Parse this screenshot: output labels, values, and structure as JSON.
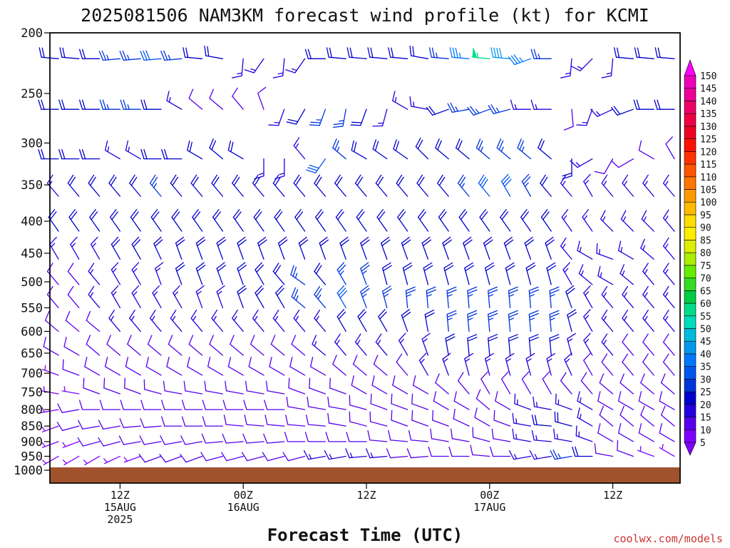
{
  "title": "2025081506 NAM3KM forecast wind profile (kt) for KCMI",
  "xlabel": "Forecast Time (UTC)",
  "credit": "coolwx.com/models",
  "colors": {
    "ground": "#a0522d",
    "credit": "#cc3333"
  },
  "colorbar": {
    "labels": [
      "5",
      "10",
      "15",
      "20",
      "25",
      "30",
      "35",
      "40",
      "45",
      "50",
      "55",
      "60",
      "65",
      "70",
      "75",
      "80",
      "85",
      "90",
      "95",
      "100",
      "105",
      "110",
      "115",
      "120",
      "125",
      "130",
      "135",
      "140",
      "145",
      "150"
    ],
    "colors": [
      "#7f00ff",
      "#5500ee",
      "#2200dd",
      "#0000cc",
      "#0033dd",
      "#0055ee",
      "#0077ff",
      "#0099ee",
      "#00bbdd",
      "#00ddbb",
      "#00dd88",
      "#00cc44",
      "#33dd22",
      "#66ee00",
      "#aaee00",
      "#ddee00",
      "#ffee00",
      "#ffdd00",
      "#ffbb00",
      "#ff9900",
      "#ff7700",
      "#ff5500",
      "#ff3300",
      "#ff1100",
      "#ee0022",
      "#ee0044",
      "#ee0066",
      "#ee0099",
      "#ee00bb",
      "#ff00ff"
    ]
  },
  "chart_data": {
    "type": "wind-barb-profile",
    "title": "2025081506 NAM3KM forecast wind profile (kt) for KCMI",
    "xlabel": "Forecast Time (UTC)",
    "ylabel": "",
    "y_scale": "log-pressure",
    "ylim": [
      1000,
      200
    ],
    "y_ticks": [
      200,
      250,
      300,
      350,
      400,
      450,
      500,
      550,
      600,
      650,
      700,
      750,
      800,
      850,
      900,
      950,
      1000
    ],
    "x_range_hours": [
      0,
      60
    ],
    "x_ticks": [
      {
        "hour": 6,
        "label": "12Z",
        "date": "15AUG",
        "year": "2025"
      },
      {
        "hour": 18,
        "label": "00Z",
        "date": "16AUG",
        "year": ""
      },
      {
        "hour": 30,
        "label": "12Z",
        "date": "",
        "year": ""
      },
      {
        "hour": 42,
        "label": "00Z",
        "date": "17AUG",
        "year": ""
      },
      {
        "hour": 54,
        "label": "12Z",
        "date": "",
        "year": ""
      }
    ],
    "barb_hours": [
      0,
      2,
      4,
      6,
      8,
      10,
      12,
      14,
      16,
      18,
      20,
      22,
      24,
      26,
      28,
      30,
      32,
      34,
      36,
      38,
      40,
      42,
      44,
      46,
      48,
      50,
      52,
      54,
      56,
      58,
      60
    ],
    "levels": [
      {
        "p": 220,
        "dir": [
          275,
          275,
          270,
          265,
          265,
          265,
          265,
          275,
          280,
          185,
          215,
          185,
          215,
          270,
          275,
          275,
          275,
          275,
          280,
          275,
          275,
          275,
          275,
          250,
          270,
          185,
          225,
          185,
          275,
          275,
          275
        ],
        "spd": [
          20,
          20,
          20,
          25,
          25,
          30,
          25,
          20,
          20,
          15,
          15,
          15,
          15,
          20,
          20,
          20,
          20,
          20,
          20,
          25,
          35,
          55,
          40,
          35,
          25,
          15,
          15,
          15,
          20,
          20,
          20
        ]
      },
      {
        "p": 265,
        "dir": [
          270,
          270,
          270,
          270,
          270,
          270,
          300,
          310,
          310,
          320,
          340,
          200,
          210,
          200,
          190,
          200,
          195,
          300,
          280,
          250,
          260,
          250,
          255,
          270,
          270,
          175,
          200,
          245,
          250,
          270,
          270
        ],
        "spd": [
          20,
          20,
          20,
          25,
          25,
          20,
          15,
          10,
          10,
          10,
          10,
          15,
          20,
          25,
          25,
          20,
          15,
          15,
          15,
          20,
          25,
          25,
          25,
          15,
          15,
          10,
          15,
          15,
          20,
          20,
          20
        ]
      },
      {
        "p": 318,
        "dir": [
          270,
          270,
          270,
          300,
          300,
          270,
          270,
          300,
          310,
          300,
          180,
          180,
          320,
          215,
          310,
          300,
          305,
          305,
          315,
          310,
          310,
          310,
          310,
          310,
          310,
          180,
          240,
          210,
          240,
          300,
          330
        ],
        "spd": [
          20,
          20,
          20,
          15,
          15,
          20,
          20,
          20,
          20,
          20,
          15,
          15,
          15,
          30,
          25,
          20,
          20,
          20,
          20,
          20,
          20,
          25,
          25,
          25,
          20,
          20,
          15,
          10,
          10,
          10,
          10
        ]
      },
      {
        "p": 365,
        "dir": [
          320,
          320,
          320,
          320,
          320,
          320,
          320,
          320,
          320,
          320,
          320,
          320,
          320,
          320,
          320,
          320,
          320,
          320,
          320,
          320,
          320,
          320,
          330,
          330,
          320,
          320,
          330,
          320,
          320,
          320,
          320
        ],
        "spd": [
          15,
          20,
          20,
          20,
          20,
          25,
          20,
          20,
          20,
          20,
          20,
          20,
          20,
          20,
          20,
          20,
          20,
          20,
          20,
          20,
          25,
          30,
          30,
          25,
          20,
          15,
          15,
          15,
          15,
          15,
          15
        ]
      },
      {
        "p": 415,
        "dir": [
          325,
          325,
          325,
          325,
          325,
          325,
          325,
          325,
          325,
          325,
          325,
          325,
          325,
          325,
          325,
          325,
          325,
          325,
          325,
          325,
          325,
          325,
          325,
          325,
          325,
          325,
          325,
          315,
          315,
          315,
          320
        ],
        "spd": [
          20,
          20,
          20,
          20,
          20,
          20,
          20,
          20,
          20,
          20,
          20,
          20,
          20,
          20,
          20,
          20,
          20,
          20,
          20,
          20,
          20,
          20,
          20,
          20,
          20,
          15,
          15,
          15,
          15,
          15,
          15
        ]
      },
      {
        "p": 460,
        "dir": [
          330,
          330,
          330,
          330,
          330,
          335,
          340,
          340,
          340,
          340,
          340,
          340,
          340,
          340,
          340,
          340,
          340,
          340,
          340,
          340,
          340,
          340,
          340,
          340,
          340,
          320,
          300,
          290,
          300,
          310,
          320
        ],
        "spd": [
          15,
          15,
          15,
          20,
          20,
          20,
          20,
          20,
          20,
          20,
          20,
          20,
          20,
          20,
          20,
          20,
          20,
          20,
          20,
          20,
          20,
          20,
          20,
          20,
          20,
          15,
          15,
          15,
          15,
          15,
          15
        ]
      },
      {
        "p": 505,
        "dir": [
          320,
          320,
          320,
          330,
          330,
          340,
          340,
          340,
          340,
          340,
          330,
          320,
          305,
          320,
          330,
          340,
          345,
          345,
          345,
          345,
          345,
          345,
          345,
          345,
          345,
          330,
          310,
          300,
          310,
          320,
          320
        ],
        "spd": [
          10,
          10,
          15,
          15,
          15,
          15,
          20,
          20,
          20,
          20,
          20,
          20,
          25,
          20,
          25,
          25,
          20,
          20,
          20,
          20,
          20,
          20,
          20,
          20,
          20,
          15,
          15,
          15,
          15,
          15,
          15
        ]
      },
      {
        "p": 550,
        "dir": [
          320,
          320,
          320,
          330,
          330,
          330,
          330,
          340,
          340,
          340,
          330,
          330,
          310,
          320,
          330,
          340,
          345,
          355,
          355,
          355,
          355,
          355,
          355,
          355,
          355,
          340,
          330,
          320,
          320,
          320,
          320
        ],
        "spd": [
          10,
          10,
          15,
          15,
          15,
          15,
          15,
          15,
          15,
          20,
          20,
          20,
          25,
          25,
          30,
          25,
          25,
          25,
          25,
          25,
          25,
          25,
          25,
          25,
          25,
          20,
          15,
          15,
          15,
          15,
          15
        ]
      },
      {
        "p": 600,
        "dir": [
          310,
          310,
          310,
          320,
          320,
          320,
          320,
          320,
          320,
          320,
          320,
          320,
          320,
          320,
          330,
          330,
          330,
          340,
          350,
          355,
          355,
          355,
          355,
          355,
          355,
          345,
          330,
          320,
          320,
          320,
          320
        ],
        "spd": [
          10,
          10,
          10,
          15,
          15,
          15,
          15,
          15,
          15,
          15,
          15,
          15,
          15,
          15,
          20,
          20,
          20,
          20,
          20,
          25,
          25,
          25,
          25,
          25,
          25,
          20,
          15,
          15,
          15,
          15,
          15
        ]
      },
      {
        "p": 655,
        "dir": [
          300,
          300,
          310,
          310,
          310,
          310,
          310,
          310,
          310,
          310,
          310,
          310,
          310,
          310,
          320,
          320,
          320,
          330,
          340,
          350,
          355,
          355,
          355,
          355,
          355,
          345,
          330,
          320,
          320,
          320,
          320
        ],
        "spd": [
          10,
          10,
          10,
          10,
          10,
          10,
          10,
          10,
          10,
          10,
          10,
          10,
          10,
          15,
          15,
          15,
          15,
          15,
          15,
          20,
          20,
          20,
          20,
          20,
          20,
          15,
          15,
          15,
          10,
          10,
          10
        ]
      },
      {
        "p": 705,
        "dir": [
          290,
          290,
          300,
          300,
          300,
          300,
          300,
          300,
          300,
          300,
          300,
          300,
          300,
          300,
          310,
          310,
          310,
          320,
          330,
          340,
          345,
          345,
          345,
          345,
          345,
          335,
          330,
          320,
          320,
          320,
          320
        ],
        "spd": [
          5,
          10,
          10,
          10,
          10,
          10,
          10,
          10,
          10,
          10,
          10,
          10,
          10,
          10,
          10,
          10,
          10,
          10,
          15,
          15,
          15,
          15,
          15,
          15,
          15,
          15,
          10,
          10,
          10,
          10,
          10
        ]
      },
      {
        "p": 755,
        "dir": [
          280,
          280,
          290,
          290,
          290,
          285,
          280,
          280,
          280,
          280,
          280,
          280,
          290,
          290,
          290,
          300,
          300,
          300,
          300,
          310,
          320,
          330,
          330,
          330,
          330,
          320,
          320,
          310,
          310,
          310,
          310
        ],
        "spd": [
          5,
          5,
          10,
          10,
          10,
          10,
          10,
          10,
          10,
          10,
          10,
          10,
          10,
          10,
          10,
          10,
          10,
          10,
          10,
          10,
          10,
          10,
          10,
          10,
          10,
          10,
          10,
          10,
          10,
          10,
          10
        ]
      },
      {
        "p": 800,
        "dir": [
          260,
          260,
          270,
          270,
          270,
          270,
          270,
          270,
          270,
          270,
          270,
          270,
          280,
          280,
          280,
          285,
          290,
          290,
          290,
          300,
          300,
          310,
          300,
          290,
          280,
          290,
          300,
          300,
          300,
          300,
          300
        ],
        "spd": [
          5,
          10,
          10,
          10,
          10,
          10,
          10,
          10,
          10,
          10,
          10,
          10,
          10,
          10,
          10,
          10,
          10,
          10,
          10,
          10,
          10,
          10,
          10,
          15,
          15,
          15,
          15,
          10,
          10,
          10,
          10
        ]
      },
      {
        "p": 850,
        "dir": [
          250,
          255,
          260,
          260,
          265,
          265,
          270,
          270,
          270,
          275,
          275,
          275,
          275,
          275,
          280,
          285,
          285,
          290,
          290,
          290,
          295,
          300,
          290,
          280,
          275,
          285,
          300,
          310,
          310,
          310,
          310
        ],
        "spd": [
          5,
          10,
          10,
          10,
          10,
          10,
          10,
          10,
          10,
          10,
          10,
          10,
          10,
          10,
          10,
          10,
          10,
          10,
          10,
          10,
          10,
          10,
          10,
          15,
          20,
          20,
          15,
          10,
          10,
          10,
          10
        ]
      },
      {
        "p": 900,
        "dir": [
          250,
          250,
          255,
          255,
          260,
          260,
          260,
          260,
          265,
          265,
          265,
          265,
          270,
          270,
          270,
          270,
          275,
          275,
          275,
          280,
          280,
          285,
          280,
          280,
          275,
          280,
          290,
          300,
          300,
          300,
          300
        ],
        "spd": [
          5,
          5,
          10,
          10,
          10,
          10,
          10,
          10,
          10,
          10,
          10,
          10,
          10,
          10,
          10,
          10,
          10,
          10,
          10,
          10,
          10,
          10,
          10,
          15,
          15,
          15,
          15,
          10,
          10,
          10,
          10
        ]
      },
      {
        "p": 950,
        "dir": [
          240,
          240,
          240,
          245,
          250,
          250,
          250,
          250,
          255,
          255,
          255,
          255,
          255,
          260,
          260,
          265,
          265,
          265,
          265,
          270,
          270,
          275,
          270,
          260,
          260,
          260,
          270,
          280,
          290,
          290,
          300
        ],
        "spd": [
          5,
          5,
          5,
          5,
          5,
          10,
          10,
          10,
          10,
          10,
          10,
          10,
          10,
          15,
          15,
          15,
          15,
          10,
          10,
          10,
          10,
          10,
          10,
          15,
          15,
          25,
          20,
          10,
          10,
          5,
          5
        ]
      }
    ]
  }
}
